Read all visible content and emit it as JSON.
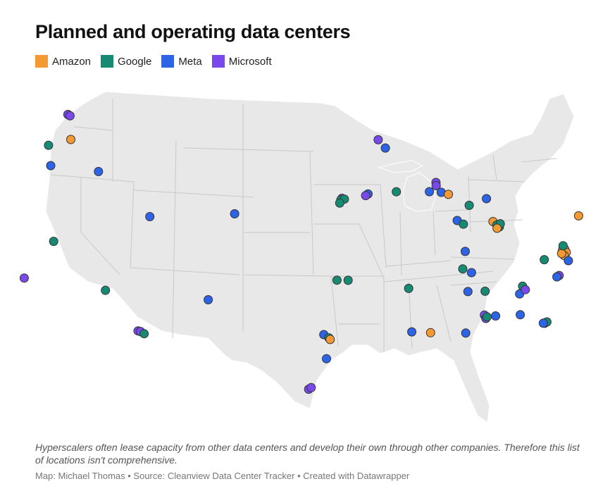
{
  "title": "Planned and operating data centers",
  "legend": [
    {
      "label": "Amazon",
      "color": "#f59a33"
    },
    {
      "label": "Google",
      "color": "#168a73"
    },
    {
      "label": "Meta",
      "color": "#2d63e6"
    },
    {
      "label": "Microsoft",
      "color": "#7a49ec"
    }
  ],
  "colors": {
    "land": "#e8e8e8",
    "border": "#ffffff",
    "state_line": "#c9c9c9",
    "dot_stroke": "#333333"
  },
  "footnote": "Hyperscalers often lease capacity from other data centers and develop their own through other companies. Therefore this list of locations isn't comprehensive.",
  "credit": "Map: Michael Thomas • Source: Cleanview Data Center Tracker • Created with Datawrapper",
  "locations": [
    {
      "company": "Microsoft",
      "lon": -119.8,
      "lat": 47.4
    },
    {
      "company": "Microsoft",
      "lon": -119.6,
      "lat": 47.3
    },
    {
      "company": "Google",
      "lon": -121.2,
      "lat": 45.6
    },
    {
      "company": "Amazon",
      "lon": -119.3,
      "lat": 45.8
    },
    {
      "company": "Meta",
      "lon": -120.8,
      "lat": 44.3
    },
    {
      "company": "Meta",
      "lon": -116.6,
      "lat": 43.6
    },
    {
      "company": "Google",
      "lon": -119.8,
      "lat": 39.5
    },
    {
      "company": "Microsoft",
      "lon": -121.9,
      "lat": 37.4
    },
    {
      "company": "Google",
      "lon": -115.1,
      "lat": 36.1
    },
    {
      "company": "Meta",
      "lon": -111.9,
      "lat": 40.5
    },
    {
      "company": "Meta",
      "lon": -104.8,
      "lat": 40.4
    },
    {
      "company": "Meta",
      "lon": -106.7,
      "lat": 35.1
    },
    {
      "company": "Microsoft",
      "lon": -112.2,
      "lat": 33.4
    },
    {
      "company": "Microsoft",
      "lon": -112.0,
      "lat": 33.35
    },
    {
      "company": "Google",
      "lon": -111.7,
      "lat": 33.2
    },
    {
      "company": "Microsoft",
      "lon": -92.6,
      "lat": 45.0
    },
    {
      "company": "Meta",
      "lon": -92.0,
      "lat": 44.5
    },
    {
      "company": "Microsoft",
      "lon": -95.8,
      "lat": 41.3
    },
    {
      "company": "Google",
      "lon": -95.9,
      "lat": 41.2
    },
    {
      "company": "Google",
      "lon": -95.6,
      "lat": 41.25
    },
    {
      "company": "Google",
      "lon": -96.0,
      "lat": 41.0
    },
    {
      "company": "Meta",
      "lon": -93.6,
      "lat": 41.6
    },
    {
      "company": "Microsoft",
      "lon": -93.8,
      "lat": 41.5
    },
    {
      "company": "Google",
      "lon": -91.2,
      "lat": 41.8
    },
    {
      "company": "Meta",
      "lon": -88.4,
      "lat": 41.9
    },
    {
      "company": "Microsoft",
      "lon": -87.8,
      "lat": 42.5
    },
    {
      "company": "Microsoft",
      "lon": -87.8,
      "lat": 42.3
    },
    {
      "company": "Meta",
      "lon": -87.4,
      "lat": 41.9
    },
    {
      "company": "Amazon",
      "lon": -86.8,
      "lat": 41.8
    },
    {
      "company": "Google",
      "lon": -85.1,
      "lat": 41.2
    },
    {
      "company": "Meta",
      "lon": -83.6,
      "lat": 41.7
    },
    {
      "company": "Meta",
      "lon": -86.2,
      "lat": 40.2
    },
    {
      "company": "Google",
      "lon": -85.7,
      "lat": 40.0
    },
    {
      "company": "Amazon",
      "lon": -83.2,
      "lat": 40.3
    },
    {
      "company": "Google",
      "lon": -82.9,
      "lat": 40.1
    },
    {
      "company": "Google",
      "lon": -82.7,
      "lat": 40.0
    },
    {
      "company": "Google",
      "lon": -82.6,
      "lat": 40.2
    },
    {
      "company": "Amazon",
      "lon": -82.9,
      "lat": 39.9
    },
    {
      "company": "Meta",
      "lon": -85.7,
      "lat": 38.3
    },
    {
      "company": "Google",
      "lon": -86.0,
      "lat": 37.2
    },
    {
      "company": "Meta",
      "lon": -85.3,
      "lat": 37.0
    },
    {
      "company": "Google",
      "lon": -84.3,
      "lat": 35.9
    },
    {
      "company": "Meta",
      "lon": -85.7,
      "lat": 35.8
    },
    {
      "company": "Google",
      "lon": -90.5,
      "lat": 35.8
    },
    {
      "company": "Meta",
      "lon": -90.4,
      "lat": 33.1
    },
    {
      "company": "Amazon",
      "lon": -88.9,
      "lat": 33.1
    },
    {
      "company": "Meta",
      "lon": -86.1,
      "lat": 33.2
    },
    {
      "company": "Microsoft",
      "lon": -84.5,
      "lat": 34.4
    },
    {
      "company": "Microsoft",
      "lon": -84.4,
      "lat": 34.2
    },
    {
      "company": "Google",
      "lon": -84.3,
      "lat": 34.3
    },
    {
      "company": "Meta",
      "lon": -83.6,
      "lat": 34.4
    },
    {
      "company": "Meta",
      "lon": -81.6,
      "lat": 34.6
    },
    {
      "company": "Google",
      "lon": -79.7,
      "lat": 34.2
    },
    {
      "company": "Google",
      "lon": -79.5,
      "lat": 34.3
    },
    {
      "company": "Meta",
      "lon": -79.8,
      "lat": 34.2
    },
    {
      "company": "Meta",
      "lon": -81.5,
      "lat": 35.9
    },
    {
      "company": "Google",
      "lon": -81.2,
      "lat": 36.4
    },
    {
      "company": "Microsoft",
      "lon": -81.0,
      "lat": 36.2
    },
    {
      "company": "Microsoft",
      "lon": -78.1,
      "lat": 37.3
    },
    {
      "company": "Meta",
      "lon": -78.3,
      "lat": 37.2
    },
    {
      "company": "Google",
      "lon": -79.2,
      "lat": 38.2
    },
    {
      "company": "Amazon",
      "lon": -75.9,
      "lat": 41.2
    },
    {
      "company": "Amazon",
      "lon": -77.5,
      "lat": 39.1
    },
    {
      "company": "Amazon",
      "lon": -77.4,
      "lat": 39.0
    },
    {
      "company": "Amazon",
      "lon": -77.6,
      "lat": 38.9
    },
    {
      "company": "Amazon",
      "lon": -77.3,
      "lat": 38.8
    },
    {
      "company": "Amazon",
      "lon": -77.5,
      "lat": 38.6
    },
    {
      "company": "Amazon",
      "lon": -77.7,
      "lat": 38.7
    },
    {
      "company": "Google",
      "lon": -77.5,
      "lat": 39.2
    },
    {
      "company": "Meta",
      "lon": -77.2,
      "lat": 38.3
    },
    {
      "company": "Google",
      "lon": -96.3,
      "lat": 36.2
    },
    {
      "company": "Google",
      "lon": -95.4,
      "lat": 36.2
    },
    {
      "company": "Meta",
      "lon": -97.4,
      "lat": 32.8
    },
    {
      "company": "Google",
      "lon": -97.0,
      "lat": 32.6
    },
    {
      "company": "Amazon",
      "lon": -96.9,
      "lat": 32.5
    },
    {
      "company": "Meta",
      "lon": -97.2,
      "lat": 31.3
    },
    {
      "company": "Microsoft",
      "lon": -98.6,
      "lat": 29.4
    },
    {
      "company": "Microsoft",
      "lon": -98.4,
      "lat": 29.5
    }
  ]
}
